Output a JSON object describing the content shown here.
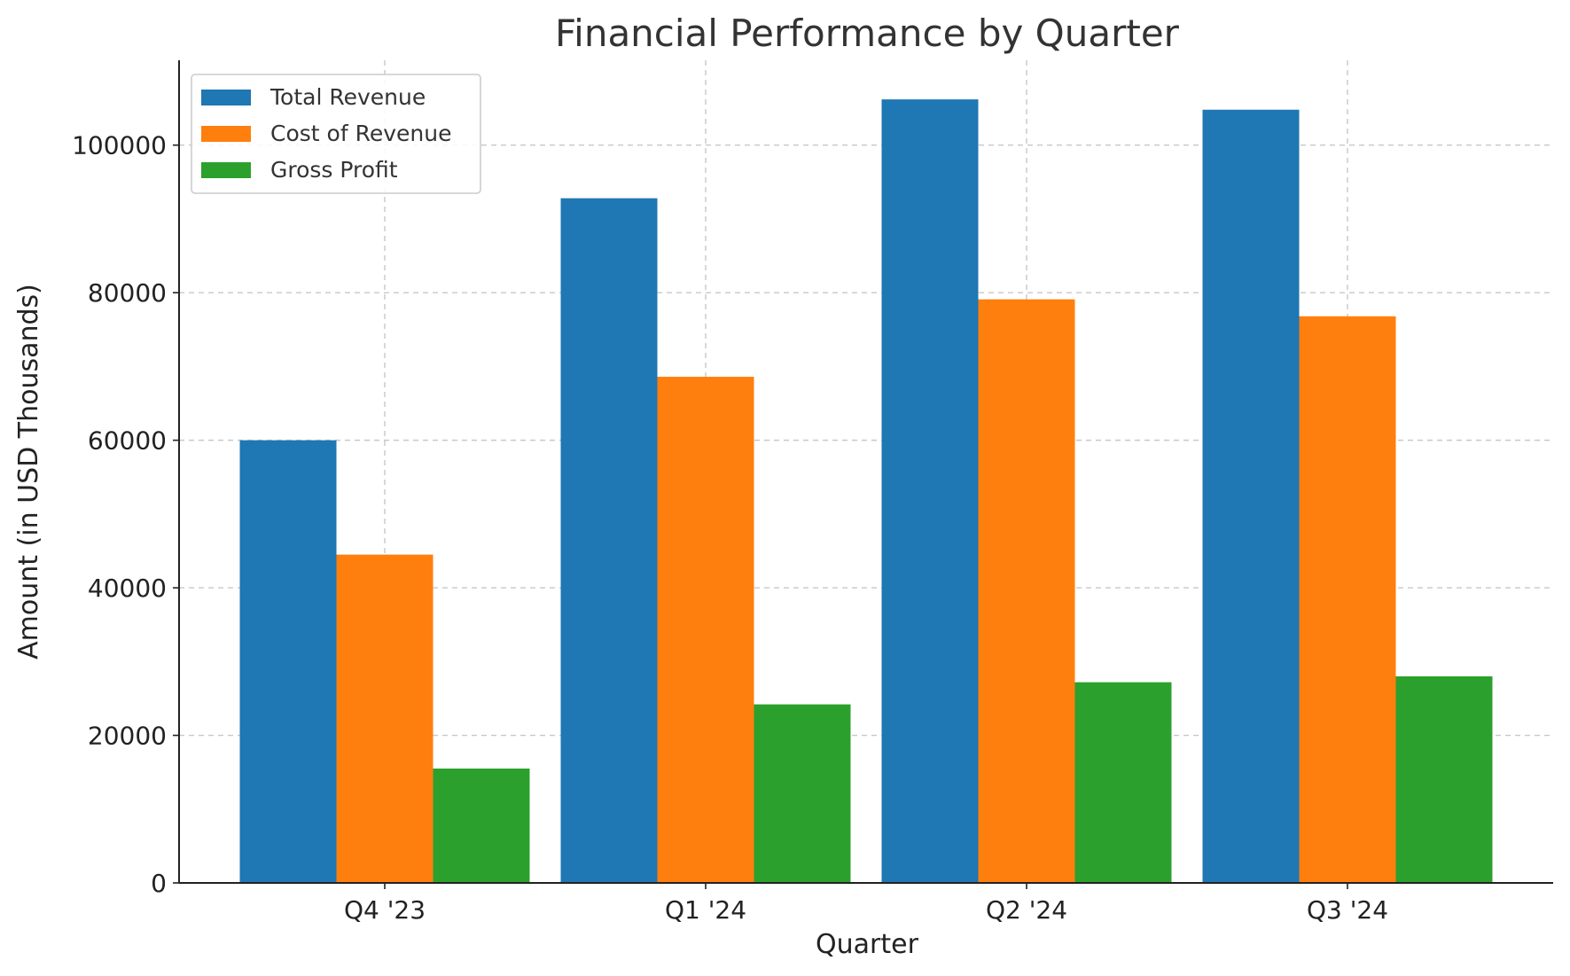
{
  "chart_data": {
    "type": "bar",
    "title": "Financial Performance by Quarter",
    "xlabel": "Quarter",
    "ylabel": "Amount (in USD Thousands)",
    "categories": [
      "Q4 '23",
      "Q1 '24",
      "Q2 '24",
      "Q3 '24"
    ],
    "series": [
      {
        "name": "Total Revenue",
        "color": "#1f77b4",
        "values": [
          60000,
          92800,
          106200,
          104800
        ]
      },
      {
        "name": "Cost of Revenue",
        "color": "#ff7f0e",
        "values": [
          44500,
          68600,
          79100,
          76800
        ]
      },
      {
        "name": "Gross Profit",
        "color": "#2ca02c",
        "values": [
          15500,
          24200,
          27200,
          28000
        ]
      }
    ],
    "ylim": [
      0,
      111500
    ],
    "yticks": [
      0,
      20000,
      40000,
      60000,
      80000,
      100000
    ],
    "grid": true,
    "legend_position": "top-left"
  }
}
